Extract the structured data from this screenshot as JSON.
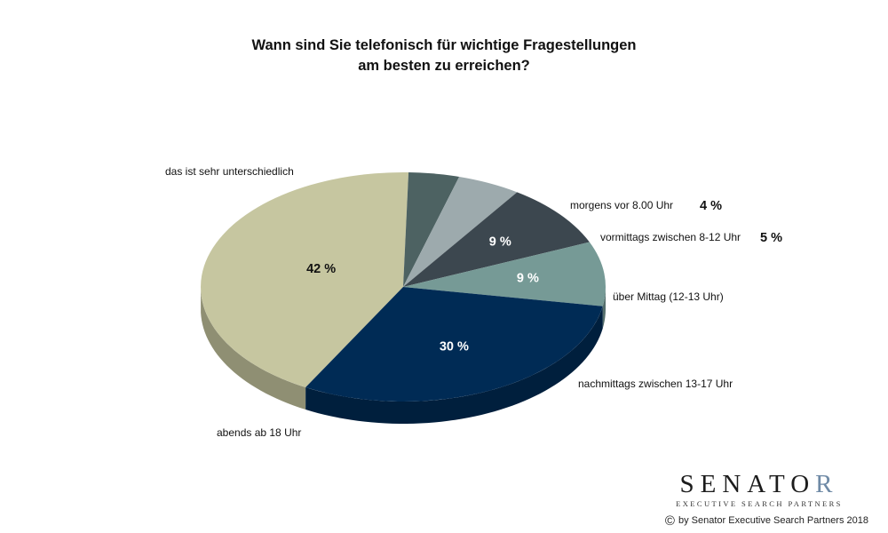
{
  "chart_data": {
    "type": "pie",
    "title": [
      "Wann sind Sie telefonisch für wichtige Fragestellungen",
      "am besten zu erreichen?"
    ],
    "slices": [
      {
        "label": "das ist sehr unterschiedlich",
        "value": 42,
        "value_label": "42 %",
        "color": "#c6c6a0"
      },
      {
        "label": "morgens vor 8.00 Uhr",
        "value": 4,
        "value_label": "4 %",
        "color": "#4d6262"
      },
      {
        "label": "vormittags zwischen 8-12 Uhr",
        "value": 5,
        "value_label": "5 %",
        "color": "#9daaad"
      },
      {
        "label": "über Mittag (12-13 Uhr)",
        "value": 9,
        "value_label": "9 %",
        "color": "#3c474f"
      },
      {
        "label": "nachmittags zwischen 13-17 Uhr",
        "value": 9,
        "value_label": "9 %",
        "color": "#769a96"
      },
      {
        "label": "abends ab 18 Uhr",
        "value": 30,
        "value_label": "30 %",
        "color": "#002b55"
      }
    ]
  },
  "logo": {
    "word_main": "SENATO",
    "word_r": "R",
    "tagline": "EXECUTIVE SEARCH PARTNERS"
  },
  "footer": {
    "copyright_symbol": "©",
    "copyright_text": "by Senator Executive Search Partners 2018"
  }
}
